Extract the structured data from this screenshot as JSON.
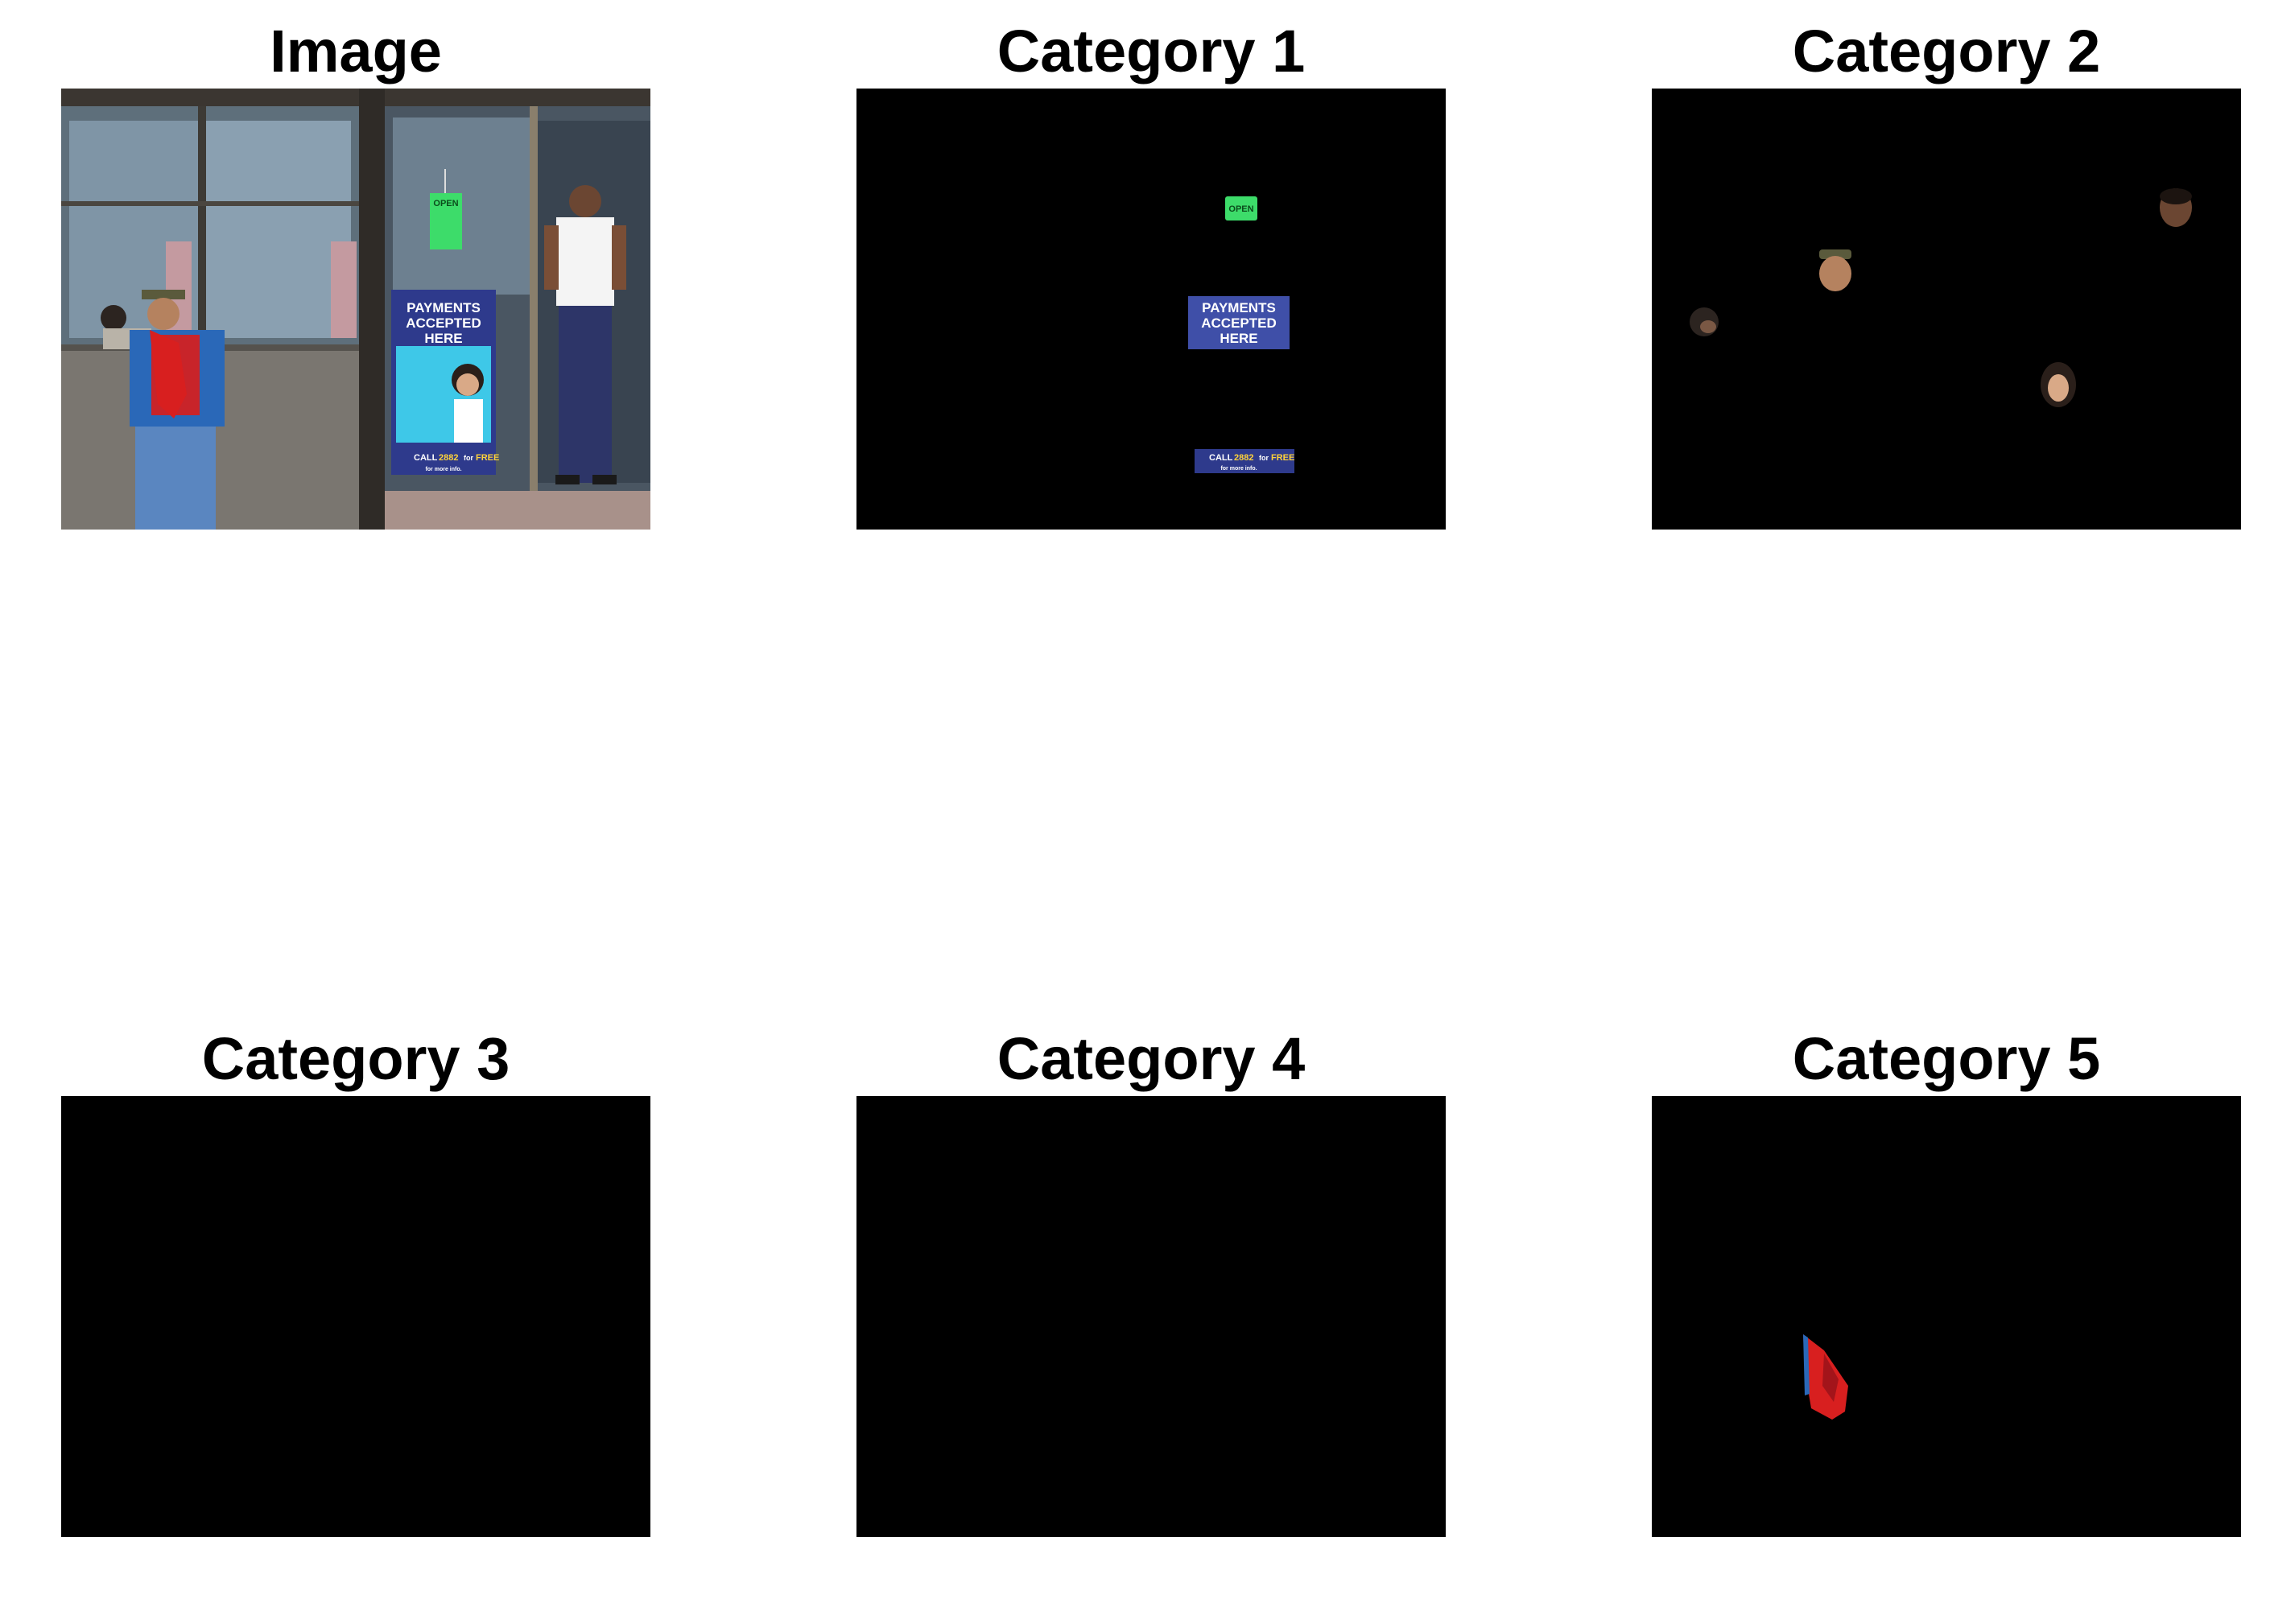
{
  "panels": {
    "image": {
      "title": "Image"
    },
    "cat1": {
      "title": "Category 1"
    },
    "cat2": {
      "title": "Category 2"
    },
    "cat3": {
      "title": "Category 3"
    },
    "cat4": {
      "title": "Category 4"
    },
    "cat5": {
      "title": "Category 5"
    }
  },
  "scene_text": {
    "open_sign": "OPEN",
    "poster_line1": "PAYMENTS",
    "poster_line2": "ACCEPTED",
    "poster_line3": "HERE",
    "bottom_call": "CALL",
    "bottom_number": "2882",
    "bottom_for": "for",
    "bottom_free": "FREE",
    "bottom_more": "for more info."
  },
  "colors": {
    "background": "#ffffff",
    "mask_background": "#000000",
    "open_sign": "#3ddc6a",
    "poster_blue": "#2e3a8c",
    "poster_cyan": "#3ec8e8",
    "free_yellow": "#ffd23a",
    "flag_red": "#d81f1f",
    "jacket_blue": "#2a68b8"
  }
}
